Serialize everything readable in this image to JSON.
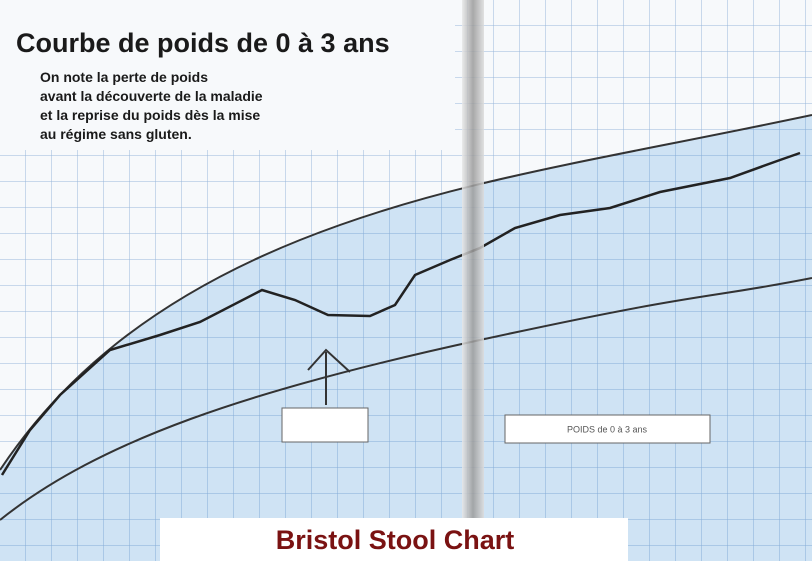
{
  "title": "Courbe de poids de 0 à 3 ans",
  "description": [
    "On note la perte de poids",
    "avant la découverte de la maladie",
    "et la reprise du poids dès la mise",
    "au régime sans gluten."
  ],
  "legend_box": "POIDS de 0 à 3 ans",
  "caption": "Bristol Stool Chart"
}
